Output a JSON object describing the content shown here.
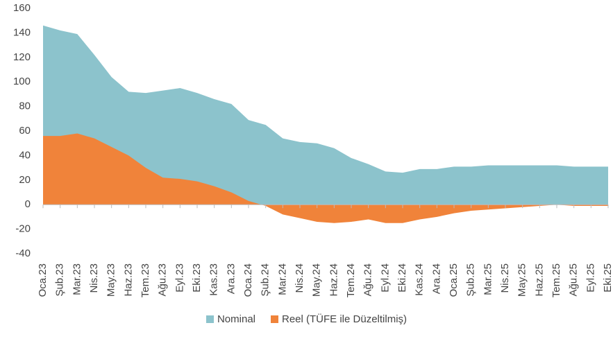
{
  "chart_data": {
    "type": "area",
    "categories": [
      "Oca.23",
      "Şub.23",
      "Mar.23",
      "Nis.23",
      "May.23",
      "Haz.23",
      "Tem.23",
      "Ağu.23",
      "Eyl.23",
      "Eki.23",
      "Kas.23",
      "Ara.23",
      "Oca.24",
      "Şub.24",
      "Mar.24",
      "Nis.24",
      "May.24",
      "Haz.24",
      "Tem.24",
      "Ağu.24",
      "Eyl.24",
      "Eki.24",
      "Kas.24",
      "Ara.24",
      "Oca.25",
      "Şub.25",
      "Mar.25",
      "Nis.25",
      "May.25",
      "Haz.25",
      "Tem.25",
      "Ağu.25",
      "Eyl.25",
      "Eki.25"
    ],
    "series": [
      {
        "name": "Nominal",
        "color": "#8cc3cc",
        "values": [
          146,
          142,
          139,
          122,
          104,
          92,
          91,
          93,
          95,
          91,
          86,
          82,
          69,
          65,
          54,
          51,
          50,
          46,
          38,
          33,
          27,
          26,
          29,
          29,
          31,
          31,
          32,
          32,
          32,
          32,
          32,
          31,
          31,
          31
        ]
      },
      {
        "name": "Reel (TÜFE ile Düzeltilmiş)",
        "color": "#f0833a",
        "values": [
          56,
          56,
          58,
          54,
          47,
          40,
          30,
          22,
          21,
          19,
          15,
          10,
          3,
          -1,
          -8,
          -11,
          -14,
          -15,
          -14,
          -12,
          -15,
          -15,
          -12,
          -10,
          -7,
          -5,
          -4,
          -3,
          -2,
          -1,
          0,
          -1,
          -1,
          -1
        ]
      }
    ],
    "ylim": [
      -40,
      160
    ],
    "yticks": [
      -40,
      -20,
      0,
      20,
      40,
      60,
      80,
      100,
      120,
      140,
      160
    ],
    "grid": false,
    "legend": "bottom"
  }
}
